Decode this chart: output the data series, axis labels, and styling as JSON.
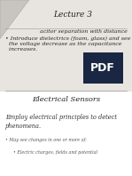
{
  "title": "Lecture 3",
  "line1_partial": "acitor separation with distance",
  "bullet2_text": "• Introduce dielectrics (foam, glass) and see\n  the voltage decrease as the capacitance\n  increases.",
  "section_title": "Electrical Sensors",
  "body_text": "Employ electrical principles to detect\nphenomena.",
  "sub_bullet1": "• May see changes in one or more of:",
  "sub_bullet2": "• Electric charges, fields and potential",
  "top_bg_color": "#e8e5e0",
  "bottom_bg_color": "#ffffff",
  "text_color": "#222222",
  "body_text_color": "#333333",
  "sub_text_color": "#555555",
  "divider_color": "#999999",
  "title_fontsize": 6.5,
  "section_fontsize": 6.0,
  "body_fontsize": 4.8,
  "bullet_fontsize": 4.5,
  "sub_fontsize": 3.5,
  "pdf_label": "PDF",
  "pdf_bg": "#1a2744",
  "pdf_text_color": "#ffffff",
  "triangle_color": "#c8c5c0",
  "triangle_edge": "#aaa8a4"
}
